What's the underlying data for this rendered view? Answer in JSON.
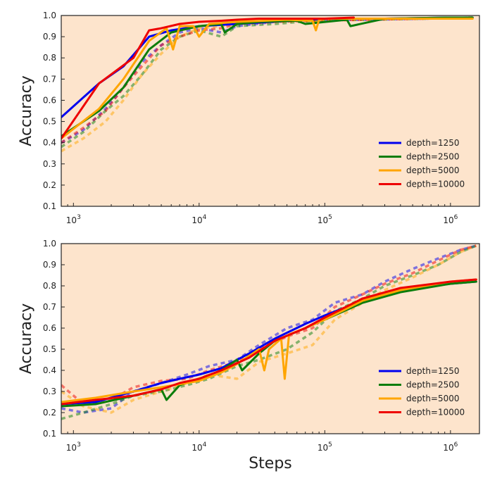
{
  "colors": {
    "background": "#ffffff",
    "plot_bg": "#fde4cc",
    "axes": "#222222",
    "depth=1250": "#0000ee",
    "depth=2500": "#0b7d0b",
    "depth=5000": "#ffa500",
    "depth=10000": "#ee0000"
  },
  "chart_data": [
    {
      "type": "line",
      "xscale": "log",
      "xlim": [
        800,
        1700000
      ],
      "ylim": [
        0.1,
        1.0
      ],
      "yticks": [
        0.1,
        0.2,
        0.3,
        0.4,
        0.5,
        0.6,
        0.7,
        0.8,
        0.9,
        1.0
      ],
      "ytick_labels": [
        "0.1",
        "0.2",
        "0.3",
        "0.4",
        "0.5",
        "0.6",
        "0.7",
        "0.8",
        "0.9",
        "1.0"
      ],
      "xticks": [
        1000,
        10000,
        100000,
        1000000
      ],
      "xtick_labels": [
        {
          "base": "10",
          "exp": "3"
        },
        {
          "base": "10",
          "exp": "4"
        },
        {
          "base": "10",
          "exp": "5"
        },
        {
          "base": "10",
          "exp": "6"
        }
      ],
      "xlabel": "",
      "ylabel": "Accuracy",
      "legend_position": "lower-right",
      "legend": [
        "depth=1250",
        "depth=2500",
        "depth=5000",
        "depth=10000"
      ],
      "series": [
        {
          "name": "depth=1250",
          "style": "solid",
          "x": [
            800,
            1600,
            2500,
            4000,
            6000,
            10000,
            20000,
            50000,
            100000,
            300000,
            1000000,
            1500000
          ],
          "y": [
            0.52,
            0.68,
            0.76,
            0.9,
            0.93,
            0.95,
            0.96,
            0.975,
            0.985,
            0.985,
            0.99,
            0.99
          ]
        },
        {
          "name": "depth=2500",
          "style": "solid",
          "x": [
            800,
            1600,
            2500,
            4000,
            6000,
            10000,
            15000,
            16000,
            20000,
            30000,
            60000,
            70000,
            150000,
            160000,
            300000,
            1000000,
            1500000
          ],
          "y": [
            0.43,
            0.55,
            0.66,
            0.84,
            0.92,
            0.95,
            0.96,
            0.92,
            0.96,
            0.97,
            0.975,
            0.96,
            0.98,
            0.95,
            0.985,
            0.99,
            0.99
          ]
        },
        {
          "name": "depth=5000",
          "style": "solid",
          "x": [
            800,
            1600,
            2500,
            4000,
            5500,
            6200,
            7000,
            9000,
            10000,
            12000,
            20000,
            50000,
            80000,
            85000,
            90000,
            100000,
            200000,
            1000000,
            1500000
          ],
          "y": [
            0.42,
            0.56,
            0.7,
            0.88,
            0.94,
            0.84,
            0.95,
            0.95,
            0.9,
            0.96,
            0.97,
            0.98,
            0.975,
            0.93,
            0.98,
            0.985,
            0.985,
            0.985,
            0.985
          ]
        },
        {
          "name": "depth=10000",
          "style": "solid",
          "x": [
            800,
            1600,
            3000,
            4000,
            5000,
            7000,
            10000,
            15000,
            20000,
            30000,
            60000,
            100000,
            170000
          ],
          "y": [
            0.42,
            0.68,
            0.8,
            0.93,
            0.94,
            0.96,
            0.97,
            0.975,
            0.98,
            0.985,
            0.985,
            0.985,
            0.99
          ]
        },
        {
          "name": "depth=1250",
          "style": "dashed",
          "x": [
            800,
            1200,
            1800,
            2500,
            3500,
            5000,
            7000,
            10000,
            15000,
            20000,
            40000,
            80000,
            200000,
            600000,
            1500000
          ],
          "y": [
            0.4,
            0.46,
            0.56,
            0.66,
            0.78,
            0.86,
            0.92,
            0.94,
            0.92,
            0.95,
            0.97,
            0.98,
            0.98,
            0.985,
            0.99
          ]
        },
        {
          "name": "depth=2500",
          "style": "dashed",
          "x": [
            800,
            1200,
            1800,
            2500,
            3500,
            5000,
            7000,
            10000,
            15000,
            20000,
            40000,
            80000,
            200000,
            600000,
            1500000
          ],
          "y": [
            0.38,
            0.45,
            0.55,
            0.62,
            0.72,
            0.84,
            0.9,
            0.93,
            0.9,
            0.95,
            0.96,
            0.975,
            0.98,
            0.985,
            0.99
          ]
        },
        {
          "name": "depth=5000",
          "style": "dashed",
          "x": [
            800,
            1200,
            1800,
            2500,
            3500,
            5000,
            7000,
            10000,
            15000,
            20000,
            40000,
            80000,
            200000,
            600000,
            1500000
          ],
          "y": [
            0.36,
            0.42,
            0.5,
            0.6,
            0.72,
            0.82,
            0.9,
            0.94,
            0.95,
            0.96,
            0.97,
            0.975,
            0.98,
            0.985,
            0.99
          ]
        },
        {
          "name": "depth=10000",
          "style": "dashed",
          "x": [
            800,
            1200,
            1800,
            2500,
            3500,
            5000,
            7000,
            10000,
            15000,
            20000,
            40000,
            80000,
            200000,
            600000,
            1500000
          ],
          "y": [
            0.4,
            0.47,
            0.55,
            0.66,
            0.76,
            0.86,
            0.9,
            0.93,
            0.94,
            0.96,
            0.97,
            0.975,
            0.98,
            0.985,
            0.99
          ]
        }
      ]
    },
    {
      "type": "line",
      "xscale": "log",
      "xlim": [
        800,
        1700000
      ],
      "ylim": [
        0.1,
        1.0
      ],
      "yticks": [
        0.1,
        0.2,
        0.3,
        0.4,
        0.5,
        0.6,
        0.7,
        0.8,
        0.9,
        1.0
      ],
      "ytick_labels": [
        "0.1",
        "0.2",
        "0.3",
        "0.4",
        "0.5",
        "0.6",
        "0.7",
        "0.8",
        "0.9",
        "1.0"
      ],
      "xticks": [
        1000,
        10000,
        100000,
        1000000
      ],
      "xtick_labels": [
        {
          "base": "10",
          "exp": "3"
        },
        {
          "base": "10",
          "exp": "4"
        },
        {
          "base": "10",
          "exp": "5"
        },
        {
          "base": "10",
          "exp": "6"
        }
      ],
      "xlabel": "Steps",
      "ylabel": "Accuracy",
      "legend_position": "lower-right",
      "legend": [
        "depth=1250",
        "depth=2500",
        "depth=5000",
        "depth=10000"
      ],
      "series": [
        {
          "name": "depth=1250",
          "style": "solid",
          "x": [
            800,
            1500,
            3000,
            5000,
            7000,
            10000,
            15000,
            25000,
            40000,
            70000,
            100000,
            200000,
            400000,
            1000000,
            1600000
          ],
          "y": [
            0.24,
            0.25,
            0.3,
            0.34,
            0.36,
            0.38,
            0.41,
            0.48,
            0.55,
            0.62,
            0.66,
            0.73,
            0.78,
            0.81,
            0.82
          ]
        },
        {
          "name": "depth=2500",
          "style": "solid",
          "x": [
            800,
            1500,
            3000,
            5000,
            5500,
            7000,
            10000,
            15000,
            20000,
            22000,
            30000,
            40000,
            70000,
            100000,
            200000,
            400000,
            1000000,
            1600000
          ],
          "y": [
            0.23,
            0.24,
            0.28,
            0.31,
            0.26,
            0.33,
            0.36,
            0.4,
            0.45,
            0.4,
            0.48,
            0.54,
            0.6,
            0.64,
            0.72,
            0.77,
            0.81,
            0.82
          ]
        },
        {
          "name": "depth=5000",
          "style": "solid",
          "x": [
            800,
            1500,
            3000,
            5000,
            10000,
            15000,
            20000,
            30000,
            33000,
            36000,
            45000,
            48000,
            52000,
            70000,
            100000,
            200000,
            400000,
            1000000,
            1600000
          ],
          "y": [
            0.25,
            0.27,
            0.3,
            0.32,
            0.35,
            0.39,
            0.43,
            0.5,
            0.4,
            0.5,
            0.55,
            0.36,
            0.57,
            0.6,
            0.64,
            0.73,
            0.78,
            0.82,
            0.83
          ]
        },
        {
          "name": "depth=10000",
          "style": "solid",
          "x": [
            800,
            1500,
            3000,
            5000,
            7000,
            10000,
            15000,
            25000,
            40000,
            70000,
            100000,
            200000,
            400000,
            1000000,
            1600000
          ],
          "y": [
            0.24,
            0.26,
            0.28,
            0.31,
            0.34,
            0.36,
            0.4,
            0.46,
            0.54,
            0.6,
            0.65,
            0.74,
            0.79,
            0.82,
            0.83
          ]
        },
        {
          "name": "depth=1250",
          "style": "dashed",
          "x": [
            800,
            1200,
            2000,
            3000,
            5000,
            8000,
            12000,
            20000,
            30000,
            50000,
            80000,
            120000,
            200000,
            300000,
            500000,
            800000,
            1200000,
            1600000
          ],
          "y": [
            0.22,
            0.2,
            0.22,
            0.3,
            0.34,
            0.38,
            0.42,
            0.45,
            0.52,
            0.6,
            0.64,
            0.72,
            0.76,
            0.82,
            0.88,
            0.93,
            0.97,
            0.99
          ]
        },
        {
          "name": "depth=2500",
          "style": "dashed",
          "x": [
            800,
            1200,
            2000,
            3000,
            5000,
            8000,
            12000,
            20000,
            30000,
            50000,
            80000,
            120000,
            200000,
            300000,
            500000,
            800000,
            1200000,
            1600000
          ],
          "y": [
            0.17,
            0.2,
            0.24,
            0.28,
            0.3,
            0.33,
            0.36,
            0.42,
            0.45,
            0.5,
            0.58,
            0.68,
            0.74,
            0.8,
            0.85,
            0.9,
            0.96,
            0.99
          ]
        },
        {
          "name": "depth=5000",
          "style": "dashed",
          "x": [
            800,
            1200,
            2000,
            3000,
            5000,
            8000,
            12000,
            20000,
            30000,
            50000,
            80000,
            120000,
            200000,
            300000,
            500000,
            800000,
            1200000,
            1600000
          ],
          "y": [
            0.3,
            0.23,
            0.2,
            0.26,
            0.3,
            0.34,
            0.38,
            0.36,
            0.44,
            0.48,
            0.52,
            0.64,
            0.72,
            0.78,
            0.84,
            0.9,
            0.96,
            0.99
          ]
        },
        {
          "name": "depth=10000",
          "style": "dashed",
          "x": [
            800,
            1200,
            2000,
            3000,
            5000,
            8000,
            12000,
            20000,
            30000,
            50000,
            80000,
            120000,
            200000,
            300000,
            500000,
            800000,
            1200000,
            1600000
          ],
          "y": [
            0.33,
            0.24,
            0.26,
            0.32,
            0.35,
            0.36,
            0.4,
            0.44,
            0.5,
            0.56,
            0.6,
            0.7,
            0.76,
            0.81,
            0.86,
            0.92,
            0.97,
            0.99
          ]
        }
      ]
    }
  ]
}
